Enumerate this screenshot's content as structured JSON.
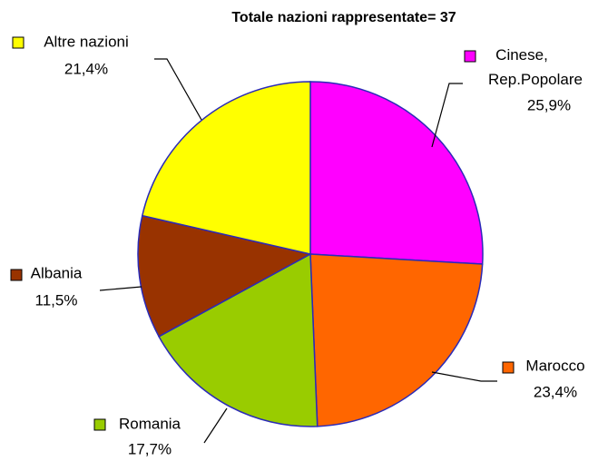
{
  "chart_data": {
    "type": "pie",
    "title": "Totale nazioni rappresentate= 37",
    "categories": [
      "Cinese, Rep.Popolare",
      "Marocco",
      "Romania",
      "Albania",
      "Altre nazioni"
    ],
    "values": [
      25.9,
      23.4,
      17.7,
      11.5,
      21.4
    ],
    "value_labels": [
      "25,9%",
      "23,4%",
      "17,7%",
      "11,5%",
      "21,4%"
    ],
    "colors": [
      "#ff00ff",
      "#ff6600",
      "#99cc00",
      "#993300",
      "#ffff00"
    ]
  }
}
